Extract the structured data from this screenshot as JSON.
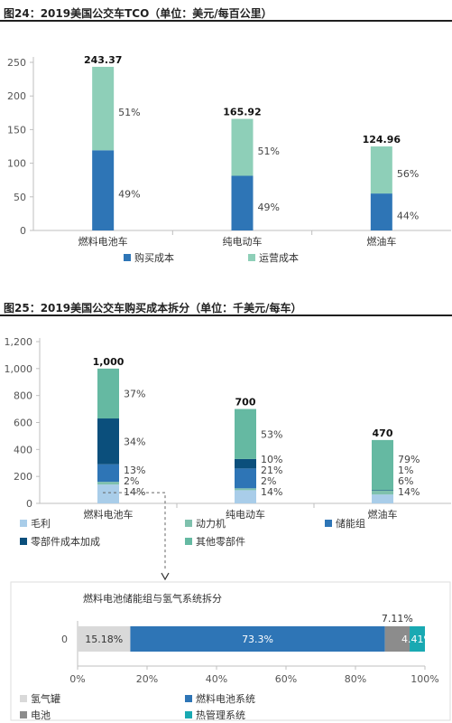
{
  "figure1": {
    "title": "图24：2019美国公交车TCO（单位：美元/每百公里）"
  },
  "figure2": {
    "title": "图25：2019美国公交车购买成本拆分（单位：千美元/每车）"
  },
  "colors": {
    "buy": "#2e75b6",
    "ops": "#8ecfb8",
    "margin": "#a9cde9",
    "powertrain": "#7fc1ad",
    "battery": "#2e75b6",
    "parts_markup": "#0b4f7c",
    "other_parts": "#65b9a2",
    "tank": "#d9d9d9",
    "fc_system": "#2e75b6",
    "battery2": "#8c8c8c",
    "thermal": "#19a9b2"
  },
  "chart_data": [
    {
      "type": "bar",
      "stacked": true,
      "categories": [
        "燃料电池车",
        "纯电动车",
        "燃油车"
      ],
      "series": [
        {
          "name": "购买成本",
          "values": [
            119.25,
            81.3,
            54.98
          ],
          "labels": [
            "49%",
            "49%",
            "44%"
          ]
        },
        {
          "name": "运营成本",
          "values": [
            124.12,
            84.62,
            69.98
          ],
          "labels": [
            "51%",
            "51%",
            "56%"
          ]
        }
      ],
      "totals": [
        "243.37",
        "165.92",
        "124.96"
      ],
      "ylim": [
        0,
        250
      ],
      "yticks": [
        "0",
        "50",
        "100",
        "150",
        "200",
        "250"
      ],
      "legend": "bottom"
    },
    {
      "type": "bar",
      "stacked": true,
      "categories": [
        "燃料电池车",
        "纯电动车",
        "燃油车"
      ],
      "series": [
        {
          "name": "毛利",
          "values": [
            140,
            98,
            65.8
          ],
          "labels": [
            "14%",
            "14%",
            "14%"
          ]
        },
        {
          "name": "动力机",
          "values": [
            20,
            14,
            28.2
          ],
          "labels": [
            "2%",
            "2%",
            "6%"
          ]
        },
        {
          "name": "储能组",
          "values": [
            130,
            147,
            0
          ],
          "labels": [
            "13%",
            "21%",
            ""
          ]
        },
        {
          "name": "零部件成本加成",
          "values": [
            340,
            70,
            4.7
          ],
          "labels": [
            "34%",
            "10%",
            "1%"
          ]
        },
        {
          "name": "其他零部件",
          "values": [
            370,
            371,
            371.3
          ],
          "labels": [
            "37%",
            "53%",
            "79%"
          ]
        }
      ],
      "totals": [
        "1,000",
        "700",
        "470"
      ],
      "ylim": [
        0,
        1200
      ],
      "yticks": [
        "0",
        "200",
        "400",
        "600",
        "800",
        "1,000",
        "1,200"
      ],
      "legend": "bottom"
    },
    {
      "type": "bar",
      "orientation": "horizontal",
      "stacked": true,
      "title": "燃料电池储能组与氢气系统拆分",
      "categories": [
        "0"
      ],
      "series": [
        {
          "name": "氢气罐",
          "values": [
            15.18
          ],
          "label": "15.18%"
        },
        {
          "name": "燃料电池系统",
          "values": [
            73.3
          ],
          "label": "73.3%"
        },
        {
          "name": "电池",
          "values": [
            7.11
          ],
          "label": "7.11%"
        },
        {
          "name": "热管理系统",
          "values": [
            4.41
          ],
          "label": "4.41%"
        }
      ],
      "xlim": [
        0,
        100
      ],
      "xticks": [
        "0%",
        "20%",
        "40%",
        "60%",
        "80%",
        "100%"
      ],
      "legend": "bottom"
    }
  ]
}
